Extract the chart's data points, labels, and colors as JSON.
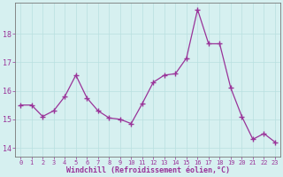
{
  "x": [
    0,
    1,
    2,
    3,
    4,
    5,
    6,
    7,
    8,
    9,
    10,
    11,
    12,
    13,
    14,
    15,
    16,
    17,
    18,
    19,
    20,
    21,
    22,
    23
  ],
  "y": [
    15.5,
    15.5,
    15.1,
    15.3,
    15.8,
    16.55,
    15.75,
    15.3,
    15.05,
    15.0,
    14.85,
    15.55,
    16.3,
    16.55,
    16.6,
    17.15,
    18.85,
    17.65,
    17.65,
    16.1,
    15.1,
    14.3,
    14.5,
    14.2
  ],
  "xlabel": "Windchill (Refroidissement éolien,°C)",
  "yticks": [
    14,
    15,
    16,
    17,
    18
  ],
  "xticks": [
    0,
    1,
    2,
    3,
    4,
    5,
    6,
    7,
    8,
    9,
    10,
    11,
    12,
    13,
    14,
    15,
    16,
    17,
    18,
    19,
    20,
    21,
    22,
    23
  ],
  "ylim": [
    13.7,
    19.1
  ],
  "xlim": [
    -0.5,
    23.5
  ],
  "line_color": "#993399",
  "marker_color": "#993399",
  "bg_color": "#d6f0f0",
  "grid_color": "#b8e0e0",
  "axis_color": "#777777",
  "tick_color": "#993399",
  "font_color": "#993399"
}
